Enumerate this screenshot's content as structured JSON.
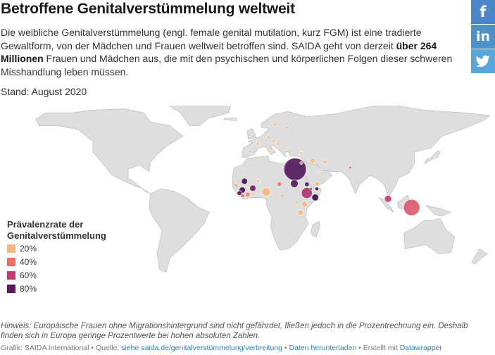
{
  "header": {
    "title": "Betroffene Genitalverstümmelung weltweit",
    "intro_part1": "Die weibliche Genitalverstümmelung (engl. female genital mutilation, kurz FGM) ist eine tradierte Gewaltform, von der Mädchen und Frauen weltweit betroffen sind. SAIDA geht von derzeit ",
    "intro_bold": "über 264 Millionen",
    "intro_part2": " Frauen und Mädchen aus, die mit den psychischen und körperlichen Folgen dieser schweren Misshandlung leben müssen.",
    "stand": "Stand: August 2020"
  },
  "share": {
    "facebook": "f",
    "linkedin": "in",
    "twitter_icon": "twitter-bird-icon"
  },
  "legend": {
    "title": "Prävalenzrate der Genitalverstümmelung",
    "items": [
      {
        "label": "20%",
        "color": "#f6b77c"
      },
      {
        "label": "40%",
        "color": "#ed6f64"
      },
      {
        "label": "60%",
        "color": "#c63a74"
      },
      {
        "label": "80%",
        "color": "#5a1a62"
      }
    ]
  },
  "chart_data": {
    "type": "scatter",
    "encoding": "proportional circles on a world map; circle size = number of affected women, color = prevalence rate",
    "colors": {
      "land": "#dedede",
      "border": "#ffffff",
      "outline": "#b5b5b5"
    },
    "series": [
      {
        "values": [
          {
            "lon": 30.8,
            "lat": 26.8,
            "prevalence": 87,
            "size": 28
          },
          {
            "lon": 39.8,
            "lat": 8.6,
            "prevalence": 65,
            "size": 13
          },
          {
            "lon": 8.6,
            "lat": 9.6,
            "prevalence": 20,
            "size": 10
          },
          {
            "lon": 30.2,
            "lat": 15.8,
            "prevalence": 87,
            "size": 9
          },
          {
            "lon": 120.0,
            "lat": -2.5,
            "prevalence": 49,
            "size": 20
          },
          {
            "lon": 101.9,
            "lat": 4.2,
            "prevalence": 60,
            "size": 8
          },
          {
            "lon": -1.6,
            "lat": 12.3,
            "prevalence": 76,
            "size": 7
          },
          {
            "lon": -8.0,
            "lat": 17.6,
            "prevalence": 89,
            "size": 7
          },
          {
            "lon": 46.2,
            "lat": 5.2,
            "prevalence": 98,
            "size": 8
          },
          {
            "lon": 42.9,
            "lat": 11.8,
            "prevalence": 94,
            "size": 2
          },
          {
            "lon": 39.8,
            "lat": 15.2,
            "prevalence": 83,
            "size": 5
          },
          {
            "lon": 47.6,
            "lat": 15.6,
            "prevalence": 19,
            "size": 5
          },
          {
            "lon": 44.0,
            "lat": 33.2,
            "prevalence": 7,
            "size": 6
          },
          {
            "lon": 53.7,
            "lat": 32.4,
            "prevalence": 20,
            "size": 4
          },
          {
            "lon": 37.9,
            "lat": 0.0,
            "prevalence": 21,
            "size": 6
          },
          {
            "lon": 34.9,
            "lat": -6.4,
            "prevalence": 10,
            "size": 6
          },
          {
            "lon": -11.8,
            "lat": 8.5,
            "prevalence": 86,
            "size": 5
          },
          {
            "lon": -9.7,
            "lat": 10.9,
            "prevalence": 95,
            "size": 7
          },
          {
            "lon": -14.5,
            "lat": 14.5,
            "prevalence": 24,
            "size": 4
          },
          {
            "lon": -9.3,
            "lat": 6.4,
            "prevalence": 44,
            "size": 4
          },
          {
            "lon": -5.5,
            "lat": 7.5,
            "prevalence": 37,
            "size": 5
          },
          {
            "lon": -1.0,
            "lat": 7.9,
            "prevalence": 4,
            "size": 3
          },
          {
            "lon": 18.7,
            "lat": 15.5,
            "prevalence": 38,
            "size": 5
          },
          {
            "lon": 12.3,
            "lat": 5.7,
            "prevalence": 1,
            "size": 3
          },
          {
            "lon": 21.0,
            "lat": 6.6,
            "prevalence": 22,
            "size": 3
          },
          {
            "lon": 32.3,
            "lat": 1.4,
            "prevalence": 1,
            "size": 3
          },
          {
            "lon": 2.3,
            "lat": 17.6,
            "prevalence": 2,
            "size": 3
          },
          {
            "lon": 14.5,
            "lat": 48.5,
            "prevalence": 1,
            "size": 3
          },
          {
            "lon": 10.4,
            "lat": 51.2,
            "prevalence": 1,
            "size": 3
          },
          {
            "lon": 2.2,
            "lat": 46.2,
            "prevalence": 1,
            "size": 3
          },
          {
            "lon": -1.2,
            "lat": 52.4,
            "prevalence": 1,
            "size": 3
          },
          {
            "lon": 12.6,
            "lat": 42.5,
            "prevalence": 1,
            "size": 3
          },
          {
            "lon": 5.3,
            "lat": 52.1,
            "prevalence": 1,
            "size": 2
          },
          {
            "lon": 15.0,
            "lat": 61.0,
            "prevalence": 1,
            "size": 3
          },
          {
            "lon": 35.2,
            "lat": 38.9,
            "prevalence": 1,
            "size": 3
          },
          {
            "lon": 35.5,
            "lat": 31.6,
            "prevalence": 1,
            "size": 3
          },
          {
            "lon": -3.7,
            "lat": 40.4,
            "prevalence": 1,
            "size": 3
          },
          {
            "lon": 25.0,
            "lat": 58.6,
            "prevalence": 1,
            "size": 3
          },
          {
            "lon": 18.0,
            "lat": 46.0,
            "prevalence": 1,
            "size": 3
          },
          {
            "lon": 24.0,
            "lat": 42.5,
            "prevalence": 1,
            "size": 2
          },
          {
            "lon": 50.2,
            "lat": 26.0,
            "prevalence": 1,
            "size": 2
          },
          {
            "lon": 73.0,
            "lat": 28.0,
            "prevalence": 60,
            "size": 2
          },
          {
            "lon": 56.0,
            "lat": 20.0,
            "prevalence": 1,
            "size": 2
          },
          {
            "lon": 47.5,
            "lat": 11.8,
            "prevalence": 99,
            "size": 4
          }
        ]
      }
    ]
  },
  "notes": {
    "hint": "Hinweis: Europäische Frauen ohne Migrationshintergrund sind nicht gefährdet, fließen jedoch in die Prozentrechnung ein. Deshalb finden sich in Europa geringe Prozentwerte bei hohen absoluten Zahlen.",
    "byline_prefix": "Grafik: SAIDA International • Quelle: ",
    "source_link": "siehe saida.de/genitalverstümmelung/verbreitung",
    "sep": " • ",
    "download_link": "Daten herunterladen",
    "created_prefix": " • Erstellt mit ",
    "created_link": "Datawrapper"
  }
}
